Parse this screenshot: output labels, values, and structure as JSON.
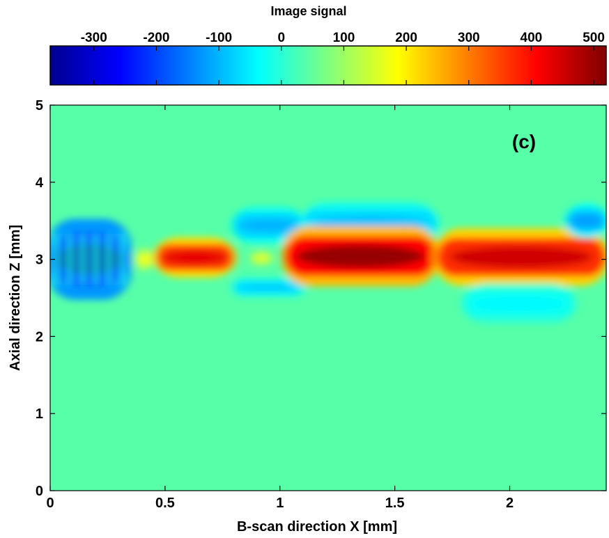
{
  "chart_data": {
    "type": "heatmap",
    "colorbar": {
      "title": "Image signal",
      "ticks": [
        -300,
        -200,
        -100,
        0,
        100,
        200,
        300,
        400,
        500
      ],
      "range": [
        -370,
        520
      ],
      "colormap": "jet",
      "position": "top"
    },
    "panel_label": "(c)",
    "xlabel": "B-scan direction X [mm]",
    "ylabel": "Axial direction Z [mm]",
    "xlim": [
      0,
      2.42
    ],
    "ylim": [
      0,
      5
    ],
    "xticks": [
      0,
      0.5,
      1,
      1.5,
      2
    ],
    "yticks": [
      0,
      1,
      2,
      3,
      4,
      5
    ],
    "background_value": 40,
    "features": [
      {
        "kind": "negative_band",
        "x": [
          0.0,
          0.34
        ],
        "z": [
          2.65,
          3.35
        ],
        "value": -330,
        "note": "striped"
      },
      {
        "kind": "positive_band",
        "x": [
          0.38,
          0.44
        ],
        "z": [
          2.9,
          3.1
        ],
        "value": 180
      },
      {
        "kind": "positive_band",
        "x": [
          0.46,
          0.8
        ],
        "z": [
          2.85,
          3.2
        ],
        "value": 430
      },
      {
        "kind": "negative_band",
        "x": [
          0.8,
          1.1
        ],
        "z": [
          3.28,
          3.6
        ],
        "value": -100
      },
      {
        "kind": "negative_band",
        "x": [
          0.8,
          1.1
        ],
        "z": [
          2.55,
          2.72
        ],
        "value": -80
      },
      {
        "kind": "positive_band",
        "x": [
          0.88,
          0.96
        ],
        "z": [
          2.95,
          3.08
        ],
        "value": 160
      },
      {
        "kind": "negative_band",
        "x": [
          1.1,
          1.68
        ],
        "z": [
          3.28,
          3.65
        ],
        "value": -90
      },
      {
        "kind": "positive_band",
        "x": [
          1.02,
          1.68
        ],
        "z": [
          2.78,
          3.3
        ],
        "value": 500
      },
      {
        "kind": "positive_band",
        "x": [
          1.68,
          2.42
        ],
        "z": [
          2.78,
          3.28
        ],
        "value": 450
      },
      {
        "kind": "negative_band",
        "x": [
          1.8,
          2.28
        ],
        "z": [
          2.25,
          2.6
        ],
        "value": -40
      },
      {
        "kind": "negative_band",
        "x": [
          2.25,
          2.42
        ],
        "z": [
          3.35,
          3.65
        ],
        "value": -120
      }
    ]
  }
}
